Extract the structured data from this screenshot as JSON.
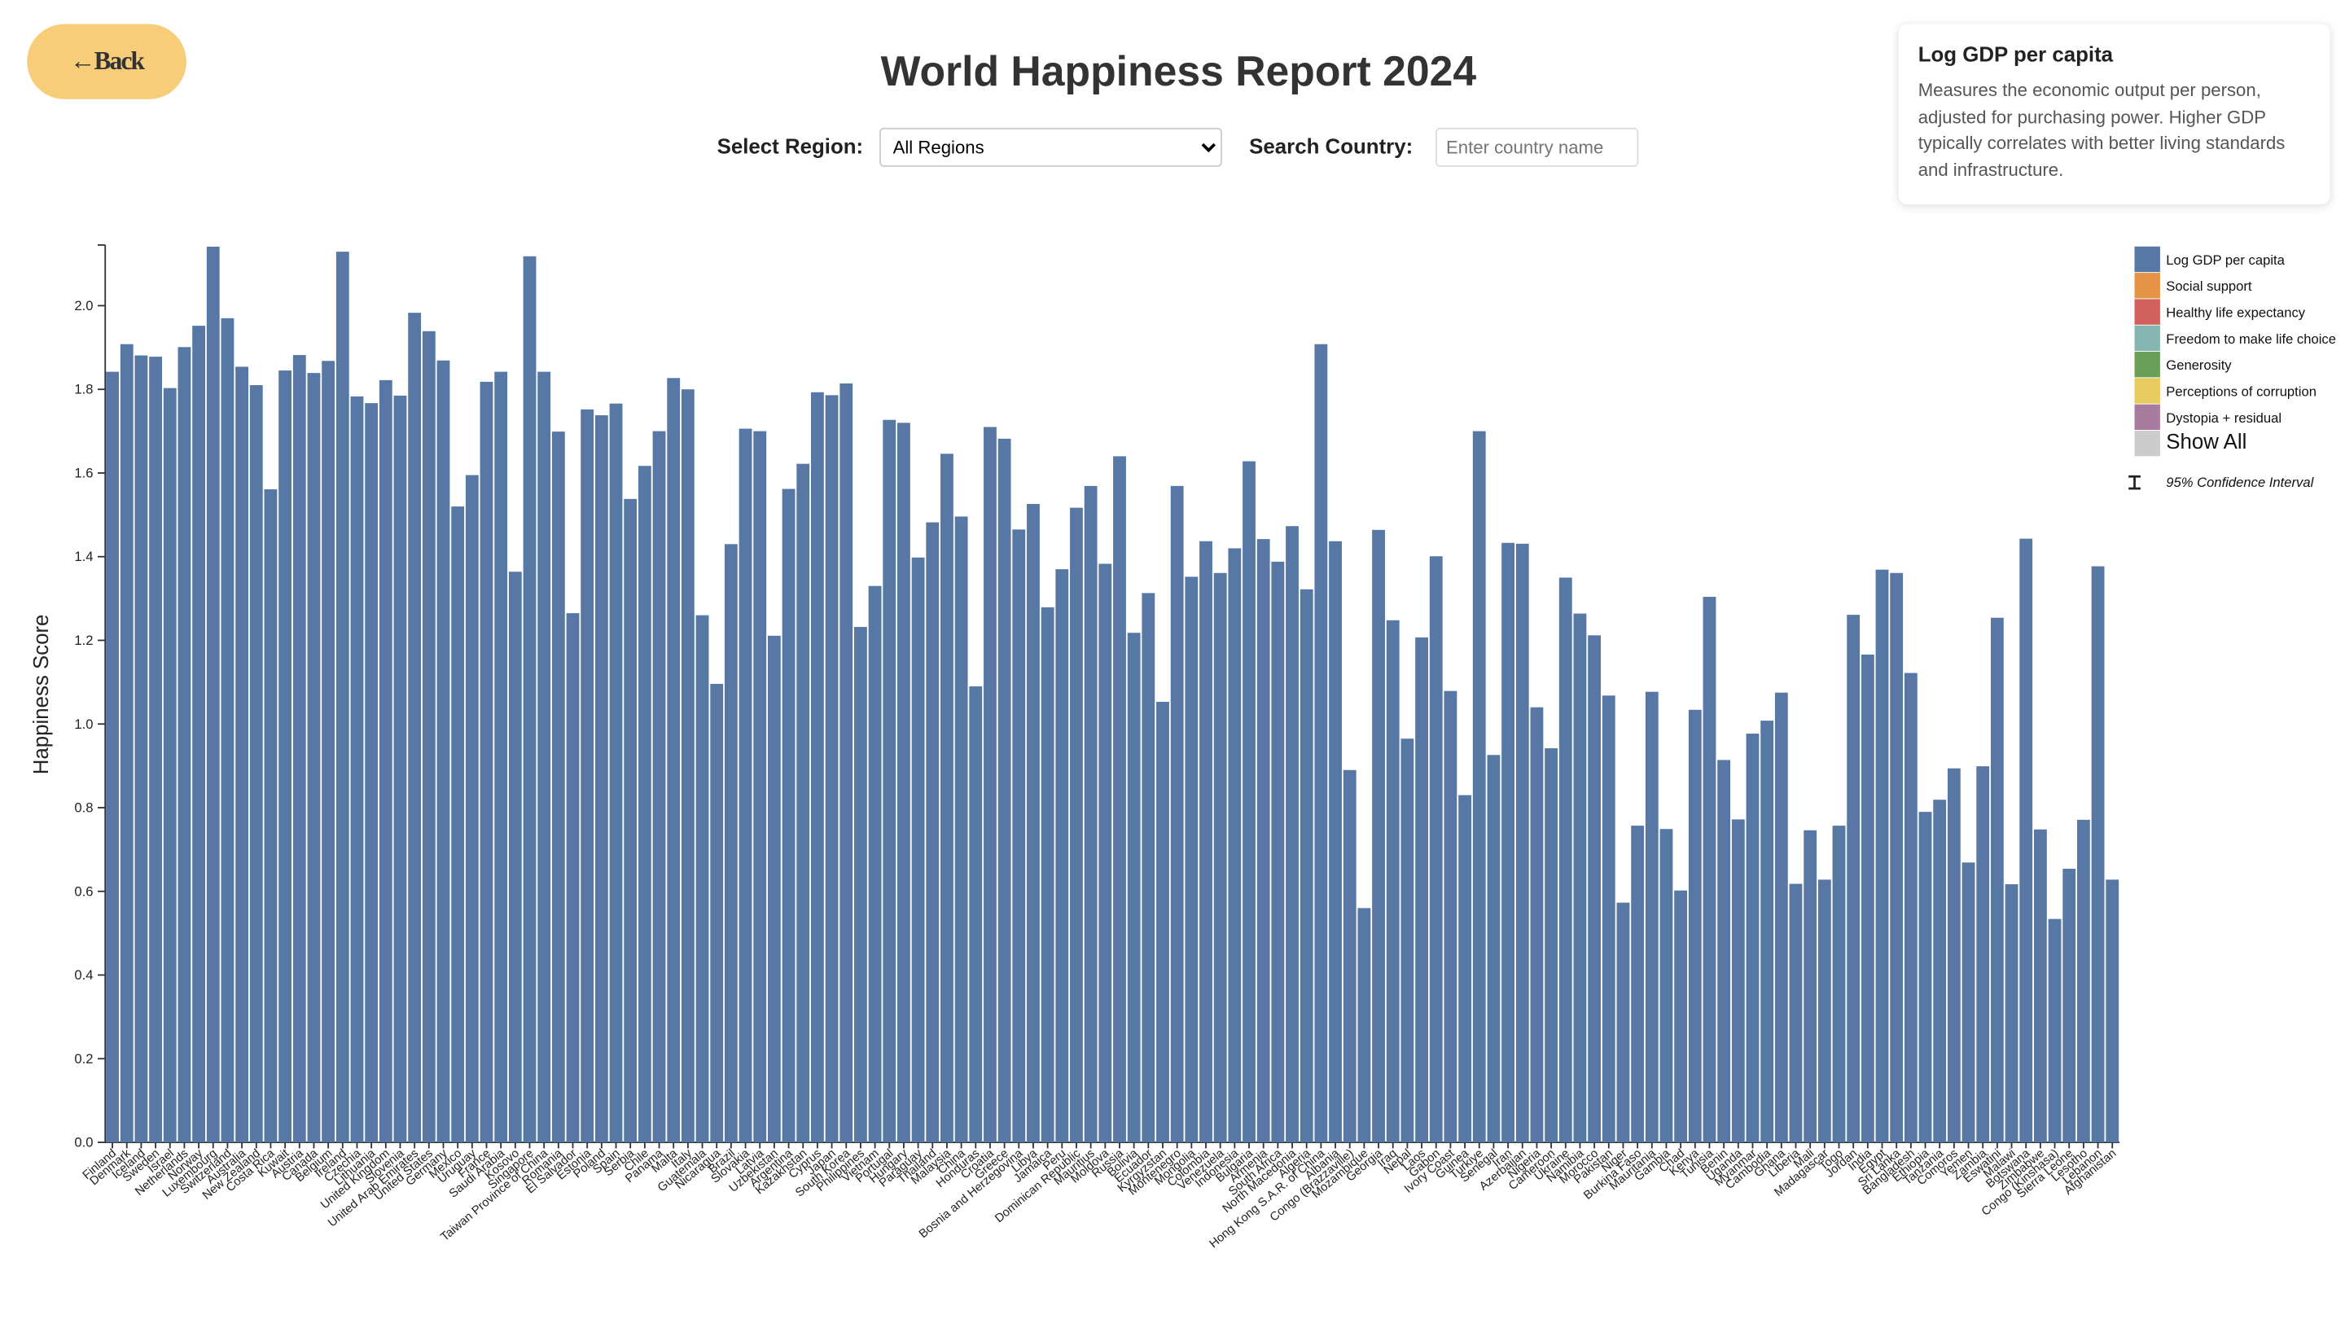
{
  "back_button": {
    "label": "←Back"
  },
  "controls": {
    "region_label": "Select Region:",
    "region_value": "All Regions",
    "search_label": "Search Country:",
    "search_placeholder": "Enter country name"
  },
  "info_panel": {
    "title": "Log GDP per capita",
    "text": "Measures the economic output per person, adjusted for purchasing power. Higher GDP typically correlates with better living standards and infrastructure."
  },
  "chart_data": {
    "type": "bar",
    "title": "World Happiness Report 2024",
    "y_label": "Happiness Score",
    "categories": [
      "Finland",
      "Denmark",
      "Iceland",
      "Sweden",
      "Israel",
      "Netherlands",
      "Norway",
      "Luxembourg",
      "Switzerland",
      "Australia",
      "New Zealand",
      "Costa Rica",
      "Kuwait",
      "Austria",
      "Canada",
      "Belgium",
      "Ireland",
      "Czechia",
      "Lithuania",
      "United Kingdom",
      "Slovenia",
      "United Arab Emirates",
      "United States",
      "Germany",
      "Mexico",
      "Uruguay",
      "France",
      "Saudi Arabia",
      "Kosovo",
      "Singapore",
      "Taiwan Province of China",
      "Romania",
      "El Salvador",
      "Estonia",
      "Poland",
      "Spain",
      "Serbia",
      "Chile",
      "Panama",
      "Malta",
      "Italy",
      "Guatemala",
      "Nicaragua",
      "Brazil",
      "Slovakia",
      "Latvia",
      "Uzbekistan",
      "Argentina",
      "Kazakhstan",
      "Cyprus",
      "Japan",
      "South Korea",
      "Philippines",
      "Vietnam",
      "Portugal",
      "Hungary",
      "Paraguay",
      "Thailand",
      "Malaysia",
      "China",
      "Honduras",
      "Croatia",
      "Greece",
      "Bosnia and Herzegovina",
      "Libya",
      "Jamaica",
      "Peru",
      "Dominican Republic",
      "Mauritius",
      "Moldova",
      "Russia",
      "Bolivia",
      "Ecuador",
      "Kyrgyzstan",
      "Montenegro",
      "Mongolia",
      "Colombia",
      "Venezuela",
      "Indonesia",
      "Bulgaria",
      "Armenia",
      "South Africa",
      "North Macedonia",
      "Algeria",
      "Hong Kong S.A.R. of China",
      "Albania",
      "Congo (Brazzaville)",
      "Mozambique",
      "Georgia",
      "Iraq",
      "Nepal",
      "Laos",
      "Gabon",
      "Ivory Coast",
      "Guinea",
      "Turkiye",
      "Senegal",
      "Iran",
      "Azerbaijan",
      "Nigeria",
      "Cameroon",
      "Ukraine",
      "Namibia",
      "Morocco",
      "Pakistan",
      "Niger",
      "Burkina Faso",
      "Mauritania",
      "Gambia",
      "Chad",
      "Kenya",
      "Tunisia",
      "Benin",
      "Uganda",
      "Myanmar",
      "Cambodia",
      "Ghana",
      "Liberia",
      "Mali",
      "Madagascar",
      "Togo",
      "Jordan",
      "India",
      "Egypt",
      "Sri Lanka",
      "Bangladesh",
      "Ethiopia",
      "Tanzania",
      "Comoros",
      "Yemen",
      "Zambia",
      "Eswatini",
      "Malawi",
      "Botswana",
      "Zimbabwe",
      "Congo (Kinshasa)",
      "Sierra Leone",
      "Lesotho",
      "Lebanon",
      "Afghanistan"
    ],
    "series": [
      {
        "name": "Log GDP per capita",
        "color": "#5778a4",
        "values": [
          1.842,
          1.908,
          1.881,
          1.878,
          1.803,
          1.901,
          1.952,
          2.141,
          1.97,
          1.854,
          1.81,
          1.561,
          1.845,
          1.882,
          1.839,
          1.868,
          2.129,
          1.783,
          1.767,
          1.822,
          1.785,
          1.983,
          1.939,
          1.869,
          1.52,
          1.595,
          1.818,
          1.842,
          1.364,
          2.118,
          1.842,
          1.699,
          1.265,
          1.752,
          1.738,
          1.766,
          1.538,
          1.617,
          1.7,
          1.827,
          1.8,
          1.26,
          1.096,
          1.43,
          1.706,
          1.7,
          1.211,
          1.562,
          1.622,
          1.793,
          1.786,
          1.814,
          1.232,
          1.33,
          1.727,
          1.72,
          1.398,
          1.482,
          1.646,
          1.496,
          1.09,
          1.71,
          1.682,
          1.465,
          1.526,
          1.279,
          1.37,
          1.517,
          1.569,
          1.383,
          1.64,
          1.218,
          1.313,
          1.053,
          1.569,
          1.352,
          1.437,
          1.361,
          1.42,
          1.628,
          1.442,
          1.388,
          1.473,
          1.322,
          1.908,
          1.437,
          0.89,
          0.56,
          1.464,
          1.248,
          0.965,
          1.207,
          1.401,
          1.079,
          0.83,
          1.7,
          0.926,
          1.433,
          1.431,
          1.04,
          0.942,
          1.35,
          1.264,
          1.212,
          1.068,
          0.573,
          0.757,
          1.077,
          0.749,
          0.602,
          1.034,
          1.304,
          0.914,
          0.772,
          0.977,
          1.008,
          1.075,
          0.618,
          0.746,
          0.628,
          0.757,
          1.261,
          1.166,
          1.369,
          1.361,
          1.122,
          0.79,
          0.819,
          0.894,
          0.669,
          0.899,
          1.254,
          0.617,
          1.443,
          0.748,
          0.534,
          0.654,
          0.771,
          1.377,
          0.628
        ]
      }
    ],
    "other_components": [
      {
        "name": "Social support",
        "color": "#e49444"
      },
      {
        "name": "Healthy life expectancy",
        "color": "#d1615d"
      },
      {
        "name": "Freedom to make life choice",
        "color": "#85b6b2"
      },
      {
        "name": "Generosity",
        "color": "#6a9f58"
      },
      {
        "name": "Perceptions of corruption",
        "color": "#e7ca60"
      },
      {
        "name": "Dystopia + residual",
        "color": "#a87c9f"
      }
    ],
    "show_all": {
      "label": "Show All",
      "color": "#cccccc"
    },
    "ci_label": "95% Confidence Interval",
    "ylim": [
      0,
      2.145
    ],
    "yticks": [
      {
        "value": 0,
        "label": "0.0"
      },
      0.2,
      0.4,
      0.6,
      0.8,
      {
        "value": 1,
        "label": "1.0"
      },
      1.2,
      1.4,
      1.6,
      1.8,
      {
        "value": 2,
        "label": "2.0"
      }
    ]
  }
}
